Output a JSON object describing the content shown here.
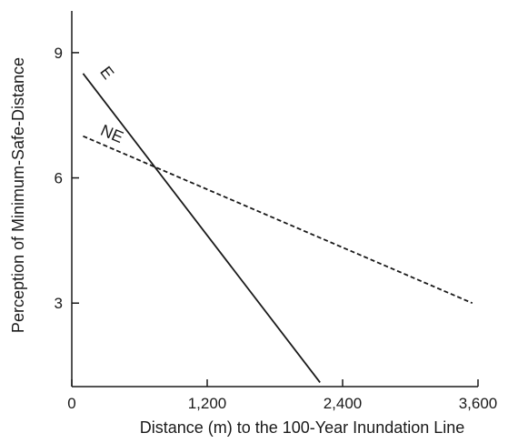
{
  "chart_data": {
    "type": "line",
    "title": "",
    "xlabel": "Distance (m) to the 100-Year Inundation Line",
    "ylabel": "Perception of Minimum-Safe-Distance",
    "xlim": [
      0,
      3600
    ],
    "ylim": [
      1,
      10
    ],
    "xticks": [
      0,
      1200,
      2400,
      3600
    ],
    "xtick_labels": [
      "0",
      "1,200",
      "2,400",
      "3,600"
    ],
    "yticks": [
      3,
      6,
      9
    ],
    "ytick_labels": [
      "3",
      "6",
      "9"
    ],
    "grid": false,
    "legend": "none",
    "series": [
      {
        "name": "E",
        "style": "solid",
        "color": "#1a1a1a",
        "x": [
          100,
          2200
        ],
        "y": [
          8.5,
          1.1
        ]
      },
      {
        "name": "NE",
        "style": "dashed",
        "color": "#1a1a1a",
        "x": [
          100,
          3550
        ],
        "y": [
          7.0,
          3.0
        ]
      }
    ]
  }
}
